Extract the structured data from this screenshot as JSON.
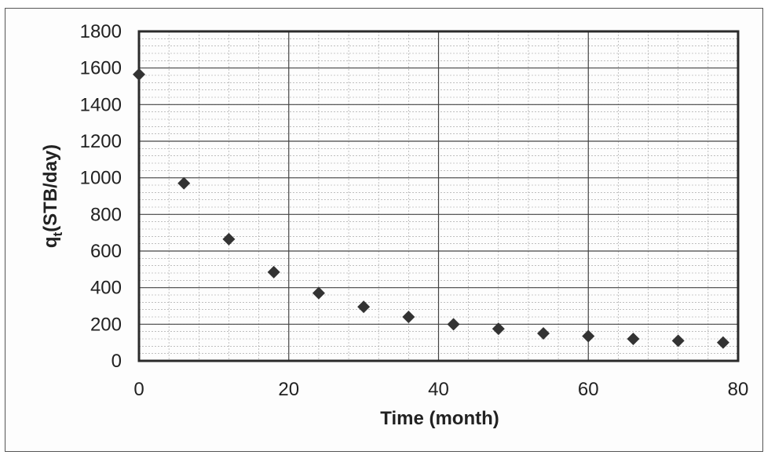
{
  "chart_data": {
    "type": "scatter",
    "title": "",
    "xlabel": "Time (month)",
    "ylabel_main": "q",
    "ylabel_sub": "t",
    "ylabel_rest": "(STB/day)",
    "xlim": [
      0,
      80
    ],
    "ylim": [
      0,
      1800
    ],
    "xticks": [
      0,
      20,
      40,
      60,
      80
    ],
    "yticks": [
      0,
      200,
      400,
      600,
      800,
      1000,
      1200,
      1400,
      1600,
      1800
    ],
    "grid": true,
    "marker": "diamond",
    "marker_color": "#333333",
    "series": [
      {
        "x": [
          0,
          6,
          12,
          18,
          24,
          30,
          36,
          42,
          48,
          54,
          60,
          66,
          72,
          78
        ],
        "y": [
          1565,
          970,
          665,
          485,
          370,
          295,
          240,
          200,
          175,
          150,
          135,
          120,
          110,
          100
        ]
      }
    ]
  }
}
